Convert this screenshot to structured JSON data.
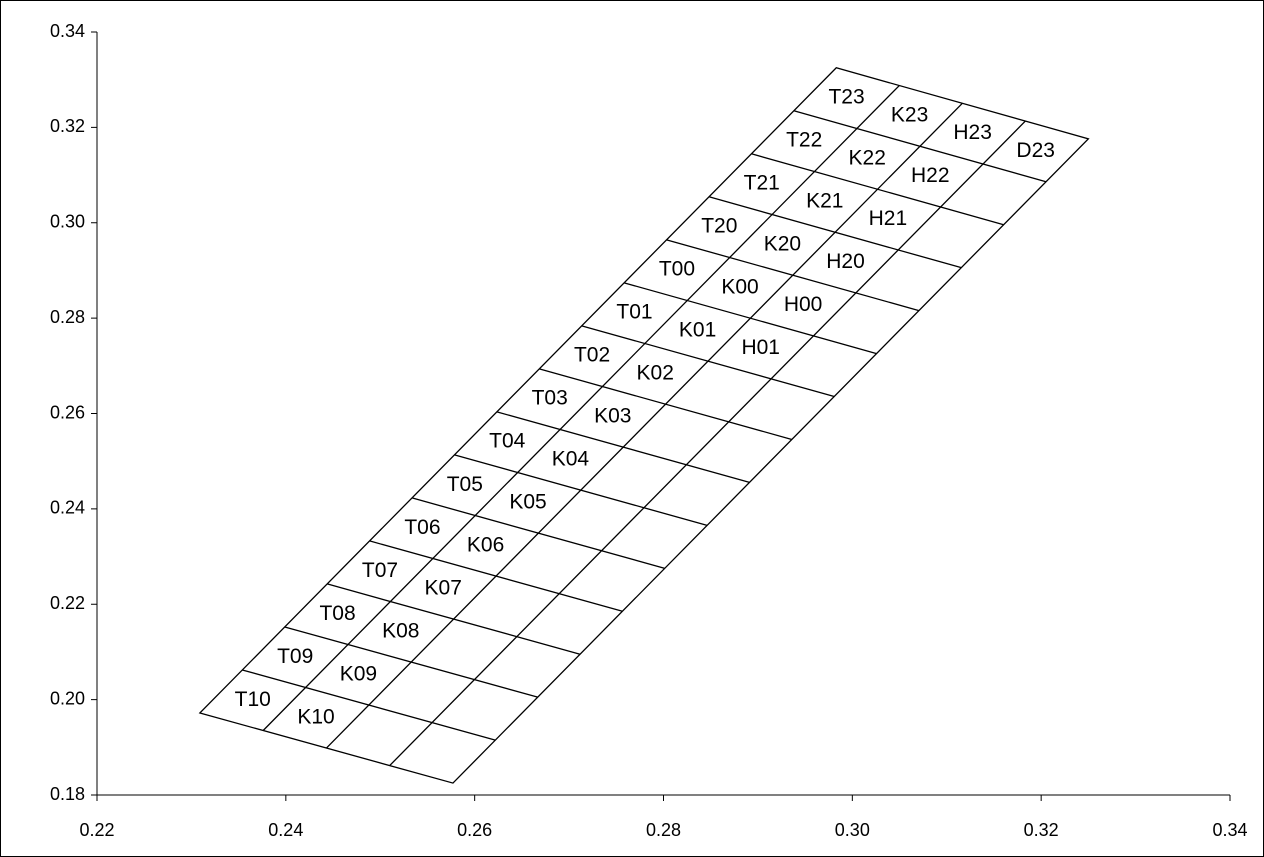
{
  "chart_data": {
    "type": "grid",
    "labels": [
      [
        "T23",
        "K23",
        "H23",
        "D23"
      ],
      [
        "T22",
        "K22",
        "H22",
        null
      ],
      [
        "T21",
        "K21",
        "H21",
        null
      ],
      [
        "T20",
        "K20",
        "H20",
        null
      ],
      [
        "T00",
        "K00",
        "H00",
        null
      ],
      [
        "T01",
        "K01",
        "H01",
        null
      ],
      [
        "T02",
        "K02",
        null,
        null
      ],
      [
        "T03",
        "K03",
        null,
        null
      ],
      [
        "T04",
        "K04",
        null,
        null
      ],
      [
        "T05",
        "K05",
        null,
        null
      ],
      [
        "T06",
        "K06",
        null,
        null
      ],
      [
        "T07",
        "K07",
        null,
        null
      ],
      [
        "T08",
        "K08",
        null,
        null
      ],
      [
        "T09",
        "K09",
        null,
        null
      ],
      [
        "T10",
        "K10",
        null,
        null
      ]
    ],
    "corners": {
      "bottom_left": [
        0.2309,
        0.1972
      ],
      "bottom_right": [
        0.2577,
        0.1825
      ],
      "top_right": [
        0.325,
        0.3176
      ],
      "top_left": [
        0.2983,
        0.3325
      ]
    },
    "color": "#000000",
    "xlim": [
      0.22,
      0.34
    ],
    "xticks": [
      0.22,
      0.24,
      0.26,
      0.28,
      {
        "value": 0.3,
        "label": "0.30"
      },
      0.32,
      0.34
    ],
    "ylim": [
      0.18,
      0.34
    ],
    "yticks": [
      0.18,
      {
        "value": 0.2,
        "label": "0.20"
      },
      0.22,
      0.24,
      0.26,
      0.28,
      {
        "value": 0.3,
        "label": "0.30"
      },
      0.32,
      0.34
    ]
  }
}
